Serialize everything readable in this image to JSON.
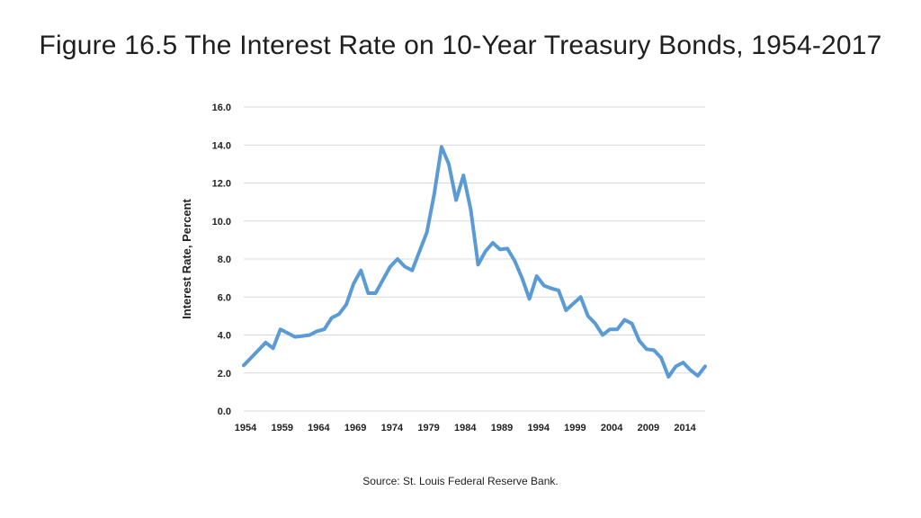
{
  "slide": {
    "title": "Figure 16.5 The Interest Rate on 10-Year Treasury Bonds, 1954-2017",
    "source": "Source: St. Louis Federal Reserve Bank."
  },
  "chart_data": {
    "type": "line",
    "title": "",
    "xlabel": "",
    "ylabel": "Interest Rate, Percent",
    "xlim": [
      1954,
      2017
    ],
    "ylim": [
      0,
      16
    ],
    "x_ticks": [
      1954,
      1959,
      1964,
      1969,
      1974,
      1979,
      1984,
      1989,
      1994,
      1999,
      2004,
      2009,
      2014
    ],
    "y_ticks": [
      "0.0",
      "2.0",
      "4.0",
      "6.0",
      "8.0",
      "10.0",
      "12.0",
      "14.0",
      "16.0"
    ],
    "grid": "horizontal",
    "line_color": "#5b9bd5",
    "series": [
      {
        "x": [
          1954,
          1955,
          1956,
          1957,
          1958,
          1959,
          1960,
          1961,
          1962,
          1963,
          1964,
          1965,
          1966,
          1967,
          1968,
          1969,
          1970,
          1971,
          1972,
          1973,
          1974,
          1975,
          1976,
          1977,
          1978,
          1979,
          1980,
          1981,
          1982,
          1983,
          1984,
          1985,
          1986,
          1987,
          1988,
          1989,
          1990,
          1991,
          1992,
          1993,
          1994,
          1995,
          1996,
          1997,
          1998,
          1999,
          2000,
          2001,
          2002,
          2003,
          2004,
          2005,
          2006,
          2007,
          2008,
          2009,
          2010,
          2011,
          2012,
          2013,
          2014,
          2015,
          2016,
          2017
        ],
        "values": [
          2.4,
          2.8,
          3.2,
          3.6,
          3.3,
          4.3,
          4.1,
          3.9,
          3.95,
          4.0,
          4.2,
          4.3,
          4.9,
          5.1,
          5.6,
          6.7,
          7.4,
          6.2,
          6.2,
          6.9,
          7.6,
          8.0,
          7.6,
          7.4,
          8.4,
          9.4,
          11.4,
          13.9,
          13.0,
          11.1,
          12.4,
          10.6,
          7.7,
          8.4,
          8.85,
          8.5,
          8.55,
          7.9,
          7.0,
          5.9,
          7.1,
          6.6,
          6.45,
          6.35,
          5.3,
          5.65,
          6.0,
          5.0,
          4.6,
          4.0,
          4.3,
          4.3,
          4.8,
          4.6,
          3.7,
          3.25,
          3.2,
          2.8,
          1.8,
          2.35,
          2.55,
          2.15,
          1.85,
          2.35
        ]
      }
    ]
  }
}
